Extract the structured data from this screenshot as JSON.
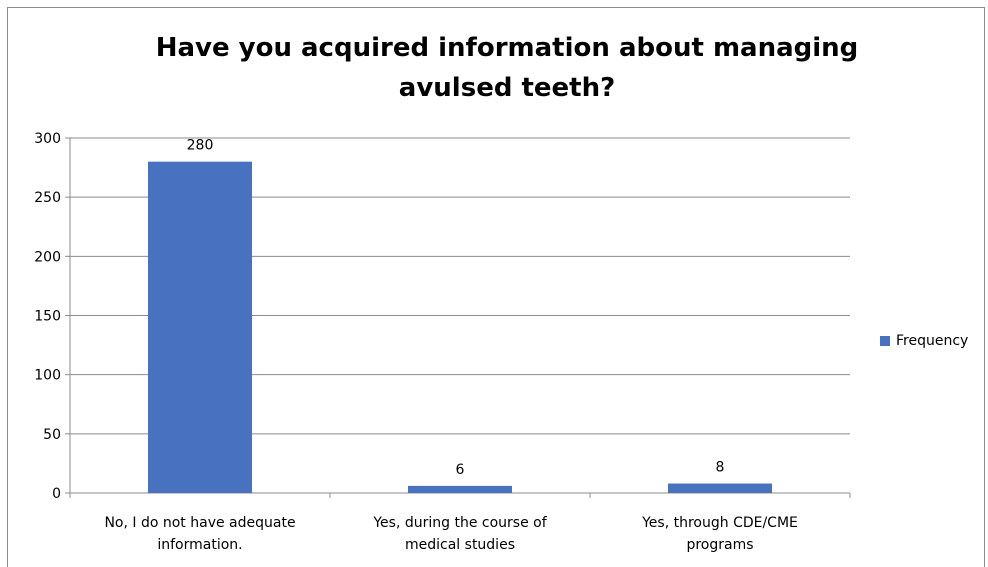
{
  "chart_data": {
    "type": "bar",
    "title_lines": [
      "Have you acquired information about managing",
      "avulsed teeth?"
    ],
    "categories": [
      [
        "No, I do not have adequate",
        "information."
      ],
      [
        "Yes, during the course of",
        "medical studies"
      ],
      [
        "Yes, through CDE/CME",
        "programs"
      ]
    ],
    "series": [
      {
        "name": "Frequency",
        "values": [
          280,
          6,
          8
        ],
        "color": "#4872c0"
      }
    ],
    "ylim": [
      0,
      300
    ],
    "yticks": [
      0,
      50,
      100,
      150,
      200,
      250,
      300
    ],
    "grid": true,
    "legend_position": "right"
  }
}
